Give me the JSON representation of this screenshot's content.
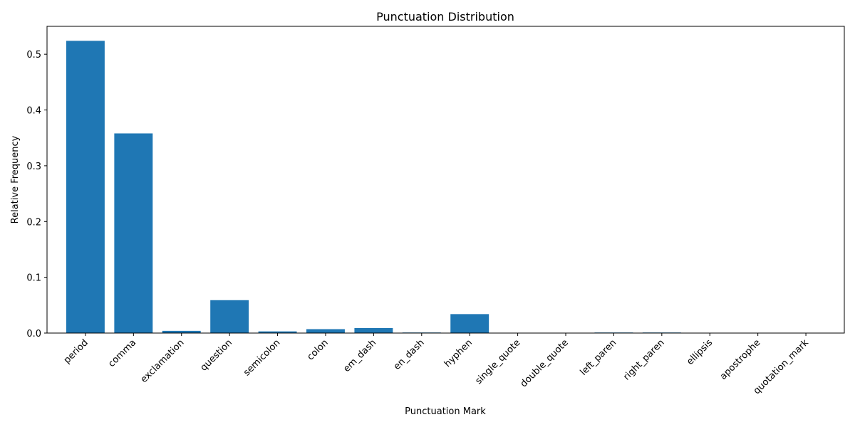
{
  "chart_data": {
    "type": "bar",
    "title": "Punctuation Distribution",
    "xlabel": "Punctuation Mark",
    "ylabel": "Relative Frequency",
    "categories": [
      "period",
      "comma",
      "exclamation",
      "question",
      "semicolon",
      "colon",
      "em_dash",
      "en_dash",
      "hyphen",
      "single_quote",
      "double_quote",
      "left_paren",
      "right_paren",
      "ellipsis",
      "apostrophe",
      "quotation_mark"
    ],
    "values": [
      0.524,
      0.358,
      0.004,
      0.059,
      0.003,
      0.007,
      0.009,
      0.001,
      0.034,
      0.0,
      0.0,
      0.001,
      0.001,
      0.0,
      0.0,
      0.0
    ],
    "ylim": [
      0,
      0.55
    ],
    "yticks": [
      0.0,
      0.1,
      0.2,
      0.3,
      0.4,
      0.5
    ],
    "ytick_labels": [
      "0.0",
      "0.1",
      "0.2",
      "0.3",
      "0.4",
      "0.5"
    ],
    "bar_color": "#1f77b4",
    "grid": false,
    "legend": "none"
  }
}
